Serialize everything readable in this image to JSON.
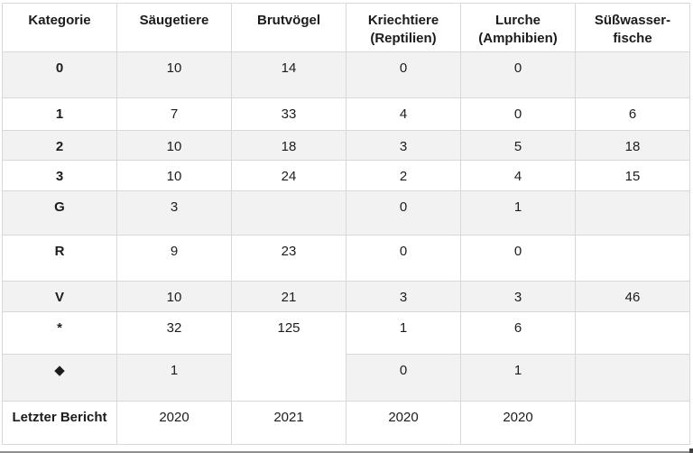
{
  "colors": {
    "stripe_row": "#f2f2f2",
    "border": "#d8d8d8",
    "text": "#1c1c1c",
    "background": "#ffffff"
  },
  "table": {
    "headers": [
      {
        "lines": [
          "Kategorie"
        ]
      },
      {
        "lines": [
          "Säugetiere"
        ]
      },
      {
        "lines": [
          "Brutvögel"
        ]
      },
      {
        "lines": [
          "Kriechtiere",
          "(Reptilien)"
        ]
      },
      {
        "lines": [
          "Lurche",
          "(Amphibien)"
        ]
      },
      {
        "lines": [
          "Süßwasser-",
          "fische"
        ]
      }
    ],
    "rows": [
      {
        "label": "0",
        "cells": [
          "10",
          "14",
          "0",
          "0",
          ""
        ]
      },
      {
        "label": "1",
        "cells": [
          "7",
          "33",
          "4",
          "0",
          "6"
        ]
      },
      {
        "label": "2",
        "cells": [
          "10",
          "18",
          "3",
          "5",
          "18"
        ]
      },
      {
        "label": "3",
        "cells": [
          "10",
          "24",
          "2",
          "4",
          "15"
        ]
      },
      {
        "label": "G",
        "cells": [
          "3",
          "",
          "0",
          "1",
          ""
        ]
      },
      {
        "label": "R",
        "cells": [
          "9",
          "23",
          "0",
          "0",
          ""
        ]
      },
      {
        "label": "V",
        "cells": [
          "10",
          "21",
          "3",
          "3",
          "46"
        ]
      },
      {
        "label": "*",
        "cells": [
          "32",
          "125",
          "1",
          "6",
          ""
        ]
      },
      {
        "label": "◆",
        "cells": [
          "1",
          "0",
          "1",
          ""
        ]
      },
      {
        "label": "Letzter Bericht",
        "cells": [
          "2020",
          "2021",
          "2020",
          "2020",
          ""
        ]
      }
    ]
  },
  "chart_data": {
    "type": "table",
    "title": "",
    "columns": [
      "Kategorie",
      "Säugetiere",
      "Brutvögel",
      "Kriechtiere (Reptilien)",
      "Lurche (Amphibien)",
      "Süßwasserfische"
    ],
    "rows": [
      [
        "0",
        10,
        14,
        0,
        0,
        null
      ],
      [
        "1",
        7,
        33,
        4,
        0,
        6
      ],
      [
        "2",
        10,
        18,
        3,
        5,
        18
      ],
      [
        "3",
        10,
        24,
        2,
        4,
        15
      ],
      [
        "G",
        3,
        null,
        0,
        1,
        null
      ],
      [
        "R",
        9,
        23,
        0,
        0,
        null
      ],
      [
        "V",
        10,
        21,
        3,
        3,
        46
      ],
      [
        "*",
        32,
        125,
        1,
        6,
        null
      ],
      [
        "◆",
        1,
        null,
        0,
        1,
        null
      ],
      [
        "Letzter Bericht",
        2020,
        2021,
        2020,
        2020,
        null
      ]
    ],
    "notes": "Brutvögel value 125 is a merged cell spanning the rows '*' and '◆'. Rows 0, 2, G, V and ◆ have a light gray striped background."
  }
}
